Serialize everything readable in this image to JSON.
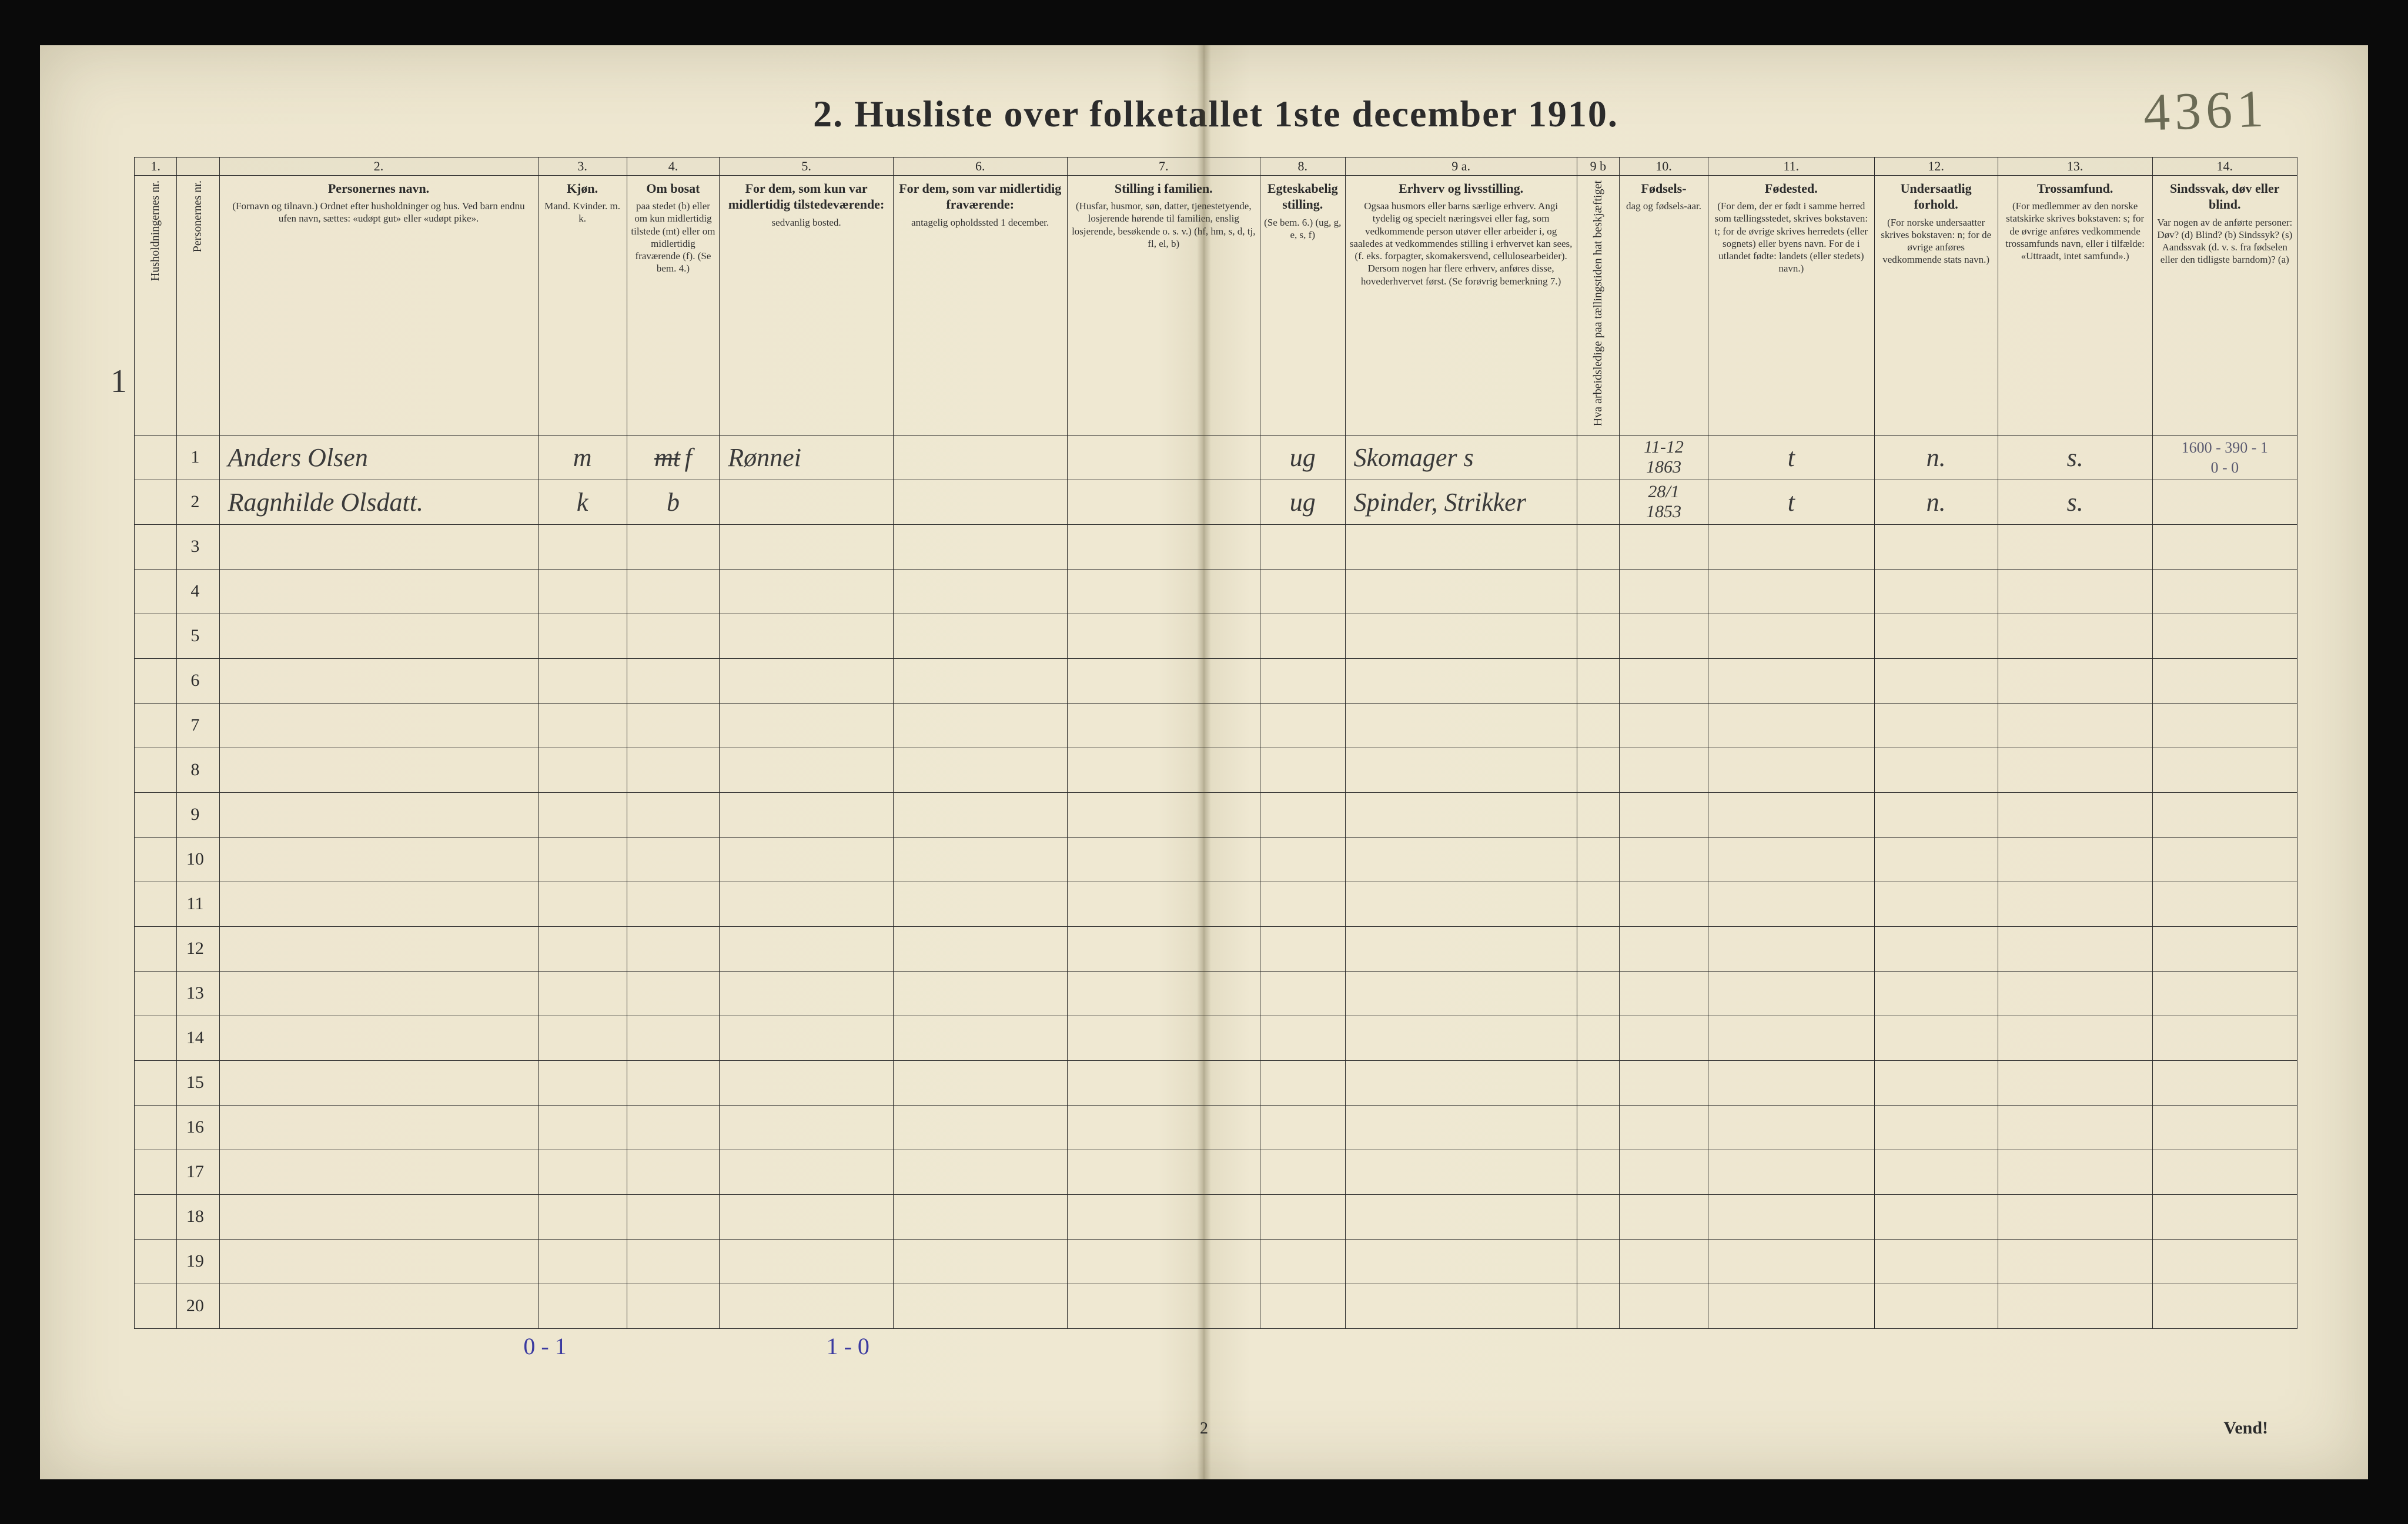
{
  "title": "2.  Husliste over folketallet 1ste december 1910.",
  "pencil_pageno": "4361",
  "footer_pgnum": "2",
  "vend": "Vend!",
  "household_mark": "1",
  "col_numbers": [
    "1.",
    "",
    "2.",
    "3.",
    "4.",
    "5.",
    "6.",
    "7.",
    "8.",
    "9 a.",
    "9 b",
    "10.",
    "11.",
    "12.",
    "13.",
    "14."
  ],
  "col_widths_pct": [
    2.2,
    2.2,
    16.5,
    4.6,
    4.8,
    9.0,
    9.0,
    10.0,
    4.4,
    12.0,
    2.2,
    4.6,
    8.6,
    6.4,
    8.0,
    7.5
  ],
  "headers": [
    {
      "title": "Husholdningernes nr.",
      "sub": "",
      "vertical": true
    },
    {
      "title": "Personernes nr.",
      "sub": "",
      "vertical": true
    },
    {
      "title": "Personernes navn.",
      "sub": "(Fornavn og tilnavn.)\nOrdnet efter husholdninger og hus.\nVed barn endnu ufen navn, sættes: «udøpt gut» eller «udøpt pike»."
    },
    {
      "title": "Kjøn.",
      "sub": "Mand.  Kvinder.\nm.  k."
    },
    {
      "title": "Om bosat",
      "sub": "paa stedet (b) eller om kun midlertidig tilstede (mt) eller om midlertidig fraværende (f).\n(Se bem. 4.)"
    },
    {
      "title": "For dem, som kun var midlertidig tilstedeværende:",
      "sub": "sedvanlig bosted."
    },
    {
      "title": "For dem, som var midlertidig fraværende:",
      "sub": "antagelig opholdssted 1 december."
    },
    {
      "title": "Stilling i familien.",
      "sub": "(Husfar, husmor, søn, datter, tjenestetyende, losjerende hørende til familien, enslig losjerende, besøkende o. s. v.)\n(hf, hm, s, d, tj, fl, el, b)"
    },
    {
      "title": "Egteskabelig stilling.",
      "sub": "(Se bem. 6.)\n(ug, g, e, s, f)"
    },
    {
      "title": "Erhverv og livsstilling.",
      "sub": "Ogsaa husmors eller barns særlige erhverv. Angi tydelig og specielt næringsvei eller fag, som vedkommende person utøver eller arbeider i, og saaledes at vedkommendes stilling i erhvervet kan sees, (f. eks. forpagter, skomakersvend, cellulosearbeider). Dersom nogen har flere erhverv, anføres disse, hovederhvervet først.\n(Se forøvrig bemerkning 7.)"
    },
    {
      "title": "",
      "sub": "Hva arbeidsledige paa tællingstiden hat beskjæftiget",
      "vertical": true
    },
    {
      "title": "Fødsels-",
      "sub": "dag og fødsels-aar."
    },
    {
      "title": "Fødested.",
      "sub": "(For dem, der er født i samme herred som tællingsstedet, skrives bokstaven: t; for de øvrige skrives herredets (eller sognets) eller byens navn. For de i utlandet fødte: landets (eller stedets) navn.)"
    },
    {
      "title": "Undersaatlig forhold.",
      "sub": "(For norske undersaatter skrives bokstaven: n; for de øvrige anføres vedkommende stats navn.)"
    },
    {
      "title": "Trossamfund.",
      "sub": "(For medlemmer av den norske statskirke skrives bokstaven: s; for de øvrige anføres vedkommende trossamfunds navn, eller i tilfælde: «Uttraadt, intet samfund».)"
    },
    {
      "title": "Sindssvak, døv eller blind.",
      "sub": "Var nogen av de anførte personer:\nDøv? (d)\nBlind? (b)\nSindssyk? (s)\nAandssvak (d. v. s. fra fødselen eller den tidligste barndom)? (a)"
    }
  ],
  "rows": [
    {
      "hh": "",
      "pn": "1",
      "name": "Anders Olsen",
      "sex": "m",
      "res": "f",
      "res_struck": "mt",
      "usual": "Rønnei",
      "away": "",
      "famstat": "",
      "marital": "ug",
      "occ": "Skomager     s",
      "occ9b": "",
      "birth": "11-12\n1863",
      "birthplace": "t",
      "nat": "n.",
      "rel": "s.",
      "disab": "1600 - 390 - 1\n0 - 0"
    },
    {
      "hh": "",
      "pn": "2",
      "name": "Ragnhilde Olsdatt.",
      "sex": "k",
      "res": "b",
      "usual": "",
      "away": "",
      "famstat": "",
      "marital": "ug",
      "occ": "Spinder, Strikker",
      "occ9b": "",
      "birth": "28/1\n1853",
      "birthplace": "t",
      "nat": "n.",
      "rel": "s.",
      "disab": ""
    }
  ],
  "blank_rows": 18,
  "notes": [
    {
      "text": "0 - 1",
      "left_pct": 18
    },
    {
      "text": "1 - 0",
      "left_pct": 32
    }
  ],
  "colors": {
    "paper": "#ede6cf",
    "ink": "#2b2b2b",
    "pencil": "#6b6b55",
    "blue": "#3a3aa0"
  }
}
